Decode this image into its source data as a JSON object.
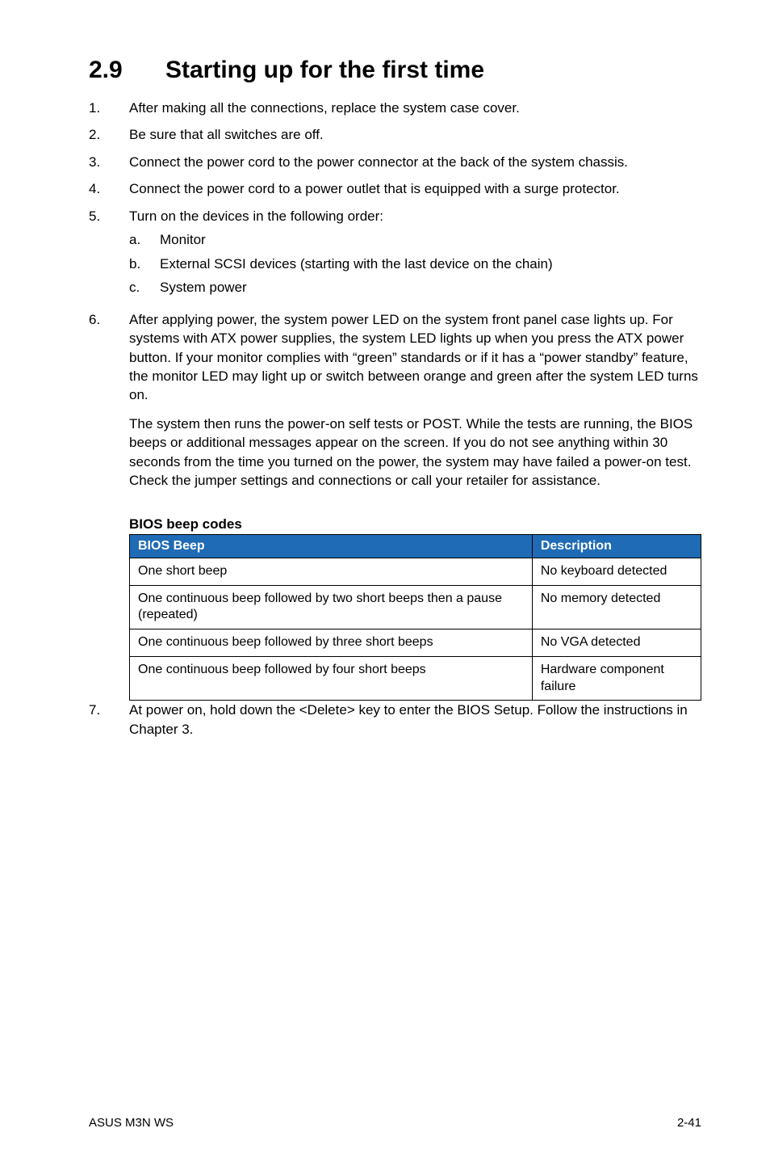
{
  "heading": {
    "number": "2.9",
    "title": "Starting up for the first time"
  },
  "steps": [
    {
      "n": "1.",
      "t": "After making all the connections, replace the system case cover."
    },
    {
      "n": "2.",
      "t": "Be sure that all switches are off."
    },
    {
      "n": "3.",
      "t": "Connect the power cord to the power connector at the back of the system chassis."
    },
    {
      "n": "4.",
      "t": "Connect the power cord to a power outlet that is equipped with a surge protector."
    },
    {
      "n": "5.",
      "t": "Turn on the devices in the following order:",
      "sub": [
        {
          "l": "a.",
          "t": "Monitor"
        },
        {
          "l": "b.",
          "t": "External SCSI devices (starting with the last device on the chain)"
        },
        {
          "l": "c.",
          "t": "System power"
        }
      ]
    },
    {
      "n": "6.",
      "t": "After applying power, the system power LED on the system front panel case lights up. For systems with ATX power supplies, the system LED lights up when you press the ATX power button. If your monitor complies with “green” standards or if it has a “power standby” feature, the monitor LED may light up or switch between orange and green after the system LED turns on.",
      "t2": "The system then runs the power-on self tests or POST. While the tests are running, the BIOS beeps or additional messages appear on the screen. If you do not see anything within 30 seconds from the time you turned on the power, the system may have failed a power-on test. Check the jumper settings and connections or call your retailer for assistance."
    }
  ],
  "table": {
    "caption": "BIOS beep codes",
    "header_bg": "#1f6bb6",
    "columns": [
      "BIOS Beep",
      "Description"
    ],
    "rows": [
      [
        "One short beep",
        "No keyboard detected"
      ],
      [
        "One continuous beep followed by two short beeps then a pause (repeated)",
        "No memory detected"
      ],
      [
        "One continuous beep followed by three short beeps",
        "No VGA detected"
      ],
      [
        "One continuous beep followed by four short beeps",
        "Hardware component failure"
      ]
    ]
  },
  "step7": {
    "n": "7.",
    "t": "At power on, hold down the <Delete> key to enter the BIOS Setup. Follow the instructions in Chapter 3."
  },
  "footer": {
    "left": "ASUS M3N WS",
    "right": "2-41"
  }
}
